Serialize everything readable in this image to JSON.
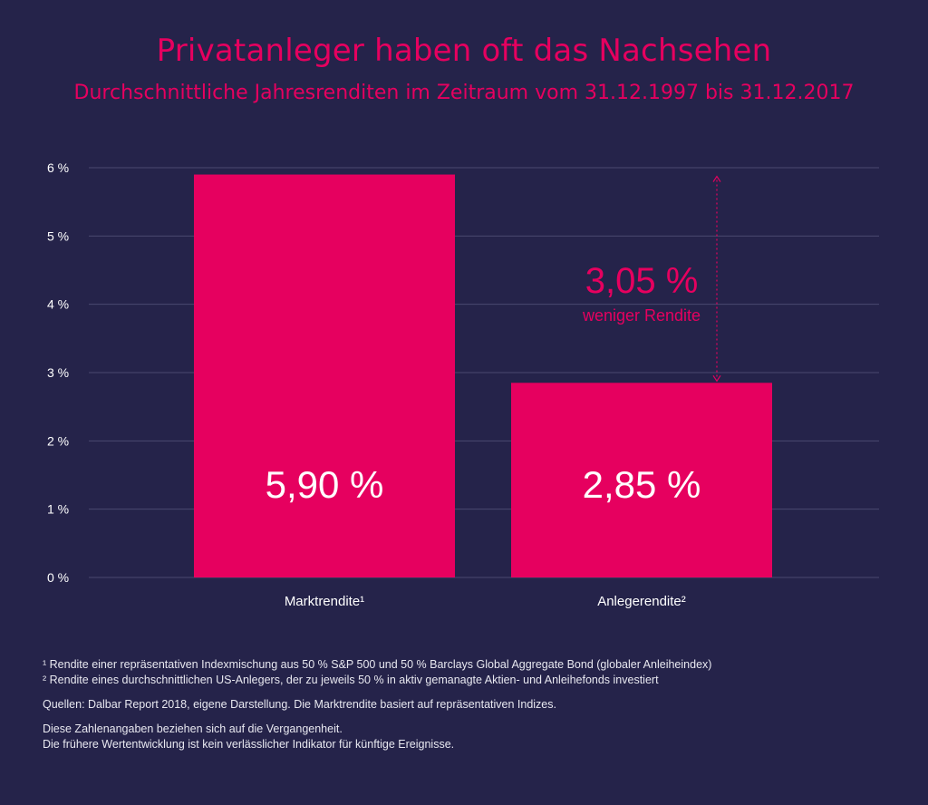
{
  "header": {
    "title": "Privatanleger haben oft das Nachsehen",
    "subtitle": "Durchschnittliche Jahresrenditen im Zeitraum vom 31.12.1997 bis 31.12.2017"
  },
  "chart_data": {
    "type": "bar",
    "categories": [
      "Marktrendite¹",
      "Anlegerendite²"
    ],
    "values": [
      5.9,
      2.85
    ],
    "value_labels": [
      "5,90 %",
      "2,85 %"
    ],
    "ylim": [
      0,
      6
    ],
    "yticks": [
      "0 %",
      "1 %",
      "2 %",
      "3 %",
      "4 %",
      "5 %",
      "6 %"
    ],
    "grid": true,
    "bar_color": "#e6005f",
    "annotation": {
      "value_label": "3,05 %",
      "text": "weniger Rendite",
      "from": 2.85,
      "to": 5.9
    }
  },
  "footnotes": {
    "note1": "¹ Rendite einer repräsentativen Indexmischung aus 50 % S&P 500 und 50 % Barclays Global Aggregate Bond (globaler Anleiheindex)",
    "note2": "² Rendite eines durchschnittlichen US-Anlegers, der zu jeweils 50 % in aktiv gemanagte Aktien- und Anleihefonds investiert",
    "sources": "Quellen: Dalbar Report 2018, eigene Darstellung. Die Marktrendite basiert auf repräsentativen Indizes.",
    "disclaimer1": "Diese Zahlenangaben beziehen sich auf die Vergangenheit.",
    "disclaimer2": "Die frühere Wertentwicklung ist kein verlässlicher Indikator für künftige Ereignisse."
  },
  "colors": {
    "background": "#25234a",
    "accent": "#e6005f",
    "grid": "#4a4870"
  }
}
